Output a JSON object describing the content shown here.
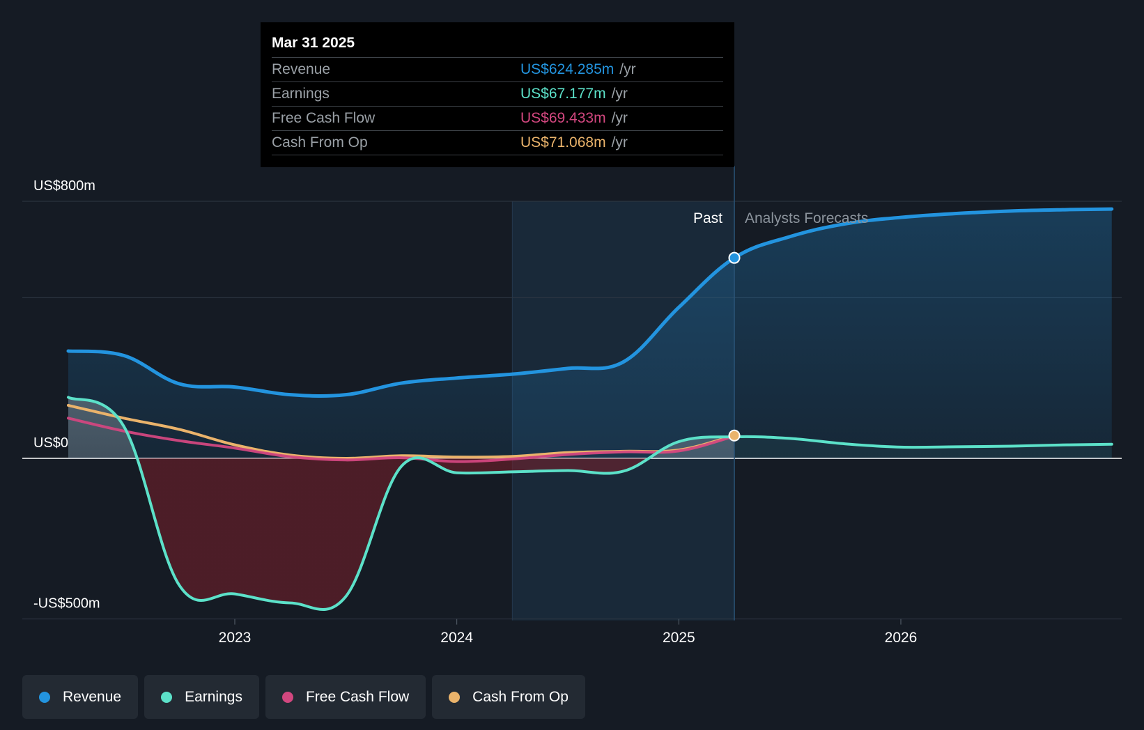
{
  "colors": {
    "revenue": "#2394df",
    "earnings": "#5ce1c9",
    "free_cash_flow": "#d2477f",
    "cash_from_op": "#eab36b",
    "background": "#151b24"
  },
  "tooltip": {
    "date": "Mar 31 2025",
    "rows": [
      {
        "label": "Revenue",
        "value": "US$624.285m",
        "unit": "/yr",
        "color": "#2394df"
      },
      {
        "label": "Earnings",
        "value": "US$67.177m",
        "unit": "/yr",
        "color": "#5ce1c9"
      },
      {
        "label": "Free Cash Flow",
        "value": "US$69.433m",
        "unit": "/yr",
        "color": "#d2477f"
      },
      {
        "label": "Cash From Op",
        "value": "US$71.068m",
        "unit": "/yr",
        "color": "#eab36b"
      }
    ]
  },
  "legend": [
    {
      "label": "Revenue",
      "color": "#2394df"
    },
    {
      "label": "Earnings",
      "color": "#5ce1c9"
    },
    {
      "label": "Free Cash Flow",
      "color": "#d2477f"
    },
    {
      "label": "Cash From Op",
      "color": "#eab36b"
    }
  ],
  "chart_data": {
    "type": "line",
    "y_labels": [
      "US$800m",
      "US$0",
      "-US$500m"
    ],
    "ylim": [
      -500,
      800
    ],
    "y_gridlines": [
      800,
      500,
      0,
      -500
    ],
    "x_ticks": [
      {
        "label": "2023",
        "x": 2023.0
      },
      {
        "label": "2024",
        "x": 2024.0
      },
      {
        "label": "2025",
        "x": 2025.0
      },
      {
        "label": "2026",
        "x": 2026.0
      }
    ],
    "xlim": [
      2022.0,
      2026.95
    ],
    "past_label": "Past",
    "forecast_label": "Analysts Forecasts",
    "past_start": 2024.25,
    "divider_x": 2025.25,
    "series": [
      {
        "name": "Revenue",
        "key": "revenue",
        "fill": true,
        "values": [
          [
            2022.25,
            334
          ],
          [
            2022.5,
            320
          ],
          [
            2022.75,
            232
          ],
          [
            2023.0,
            222
          ],
          [
            2023.25,
            198
          ],
          [
            2023.5,
            198
          ],
          [
            2023.75,
            234
          ],
          [
            2024.0,
            250
          ],
          [
            2024.25,
            262
          ],
          [
            2024.5,
            280
          ],
          [
            2024.75,
            300
          ],
          [
            2025.0,
            470
          ],
          [
            2025.25,
            624
          ]
        ],
        "forecast": [
          [
            2025.25,
            624
          ],
          [
            2025.5,
            690
          ],
          [
            2025.75,
            730
          ],
          [
            2026.0,
            750
          ],
          [
            2026.25,
            762
          ],
          [
            2026.5,
            770
          ],
          [
            2026.75,
            774
          ],
          [
            2026.95,
            776
          ]
        ]
      },
      {
        "name": "Earnings",
        "key": "earnings",
        "fill": true,
        "values": [
          [
            2022.25,
            190
          ],
          [
            2022.5,
            100
          ],
          [
            2022.75,
            -395
          ],
          [
            2023.0,
            -422
          ],
          [
            2023.25,
            -450
          ],
          [
            2023.5,
            -430
          ],
          [
            2023.75,
            -25
          ],
          [
            2024.0,
            -45
          ],
          [
            2024.25,
            -42
          ],
          [
            2024.5,
            -38
          ],
          [
            2024.75,
            -40
          ],
          [
            2025.0,
            52
          ],
          [
            2025.25,
            67
          ]
        ],
        "forecast": [
          [
            2025.25,
            67
          ],
          [
            2025.5,
            62
          ],
          [
            2025.75,
            45
          ],
          [
            2026.0,
            35
          ],
          [
            2026.25,
            36
          ],
          [
            2026.5,
            38
          ],
          [
            2026.75,
            42
          ],
          [
            2026.95,
            44
          ]
        ]
      },
      {
        "name": "Free Cash Flow",
        "key": "free_cash_flow",
        "fill": false,
        "values": [
          [
            2022.25,
            125
          ],
          [
            2022.5,
            85
          ],
          [
            2022.75,
            55
          ],
          [
            2023.0,
            32
          ],
          [
            2023.25,
            5
          ],
          [
            2023.5,
            -5
          ],
          [
            2023.75,
            2
          ],
          [
            2024.0,
            -10
          ],
          [
            2024.25,
            -2
          ],
          [
            2024.5,
            12
          ],
          [
            2024.75,
            20
          ],
          [
            2025.0,
            23
          ],
          [
            2025.25,
            69
          ]
        ]
      },
      {
        "name": "Cash From Op",
        "key": "cash_from_op",
        "fill": false,
        "values": [
          [
            2022.25,
            165
          ],
          [
            2022.5,
            125
          ],
          [
            2022.75,
            90
          ],
          [
            2023.0,
            42
          ],
          [
            2023.25,
            10
          ],
          [
            2023.5,
            0
          ],
          [
            2023.75,
            8
          ],
          [
            2024.0,
            4
          ],
          [
            2024.25,
            6
          ],
          [
            2024.5,
            18
          ],
          [
            2024.75,
            22
          ],
          [
            2025.0,
            26
          ],
          [
            2025.25,
            71
          ]
        ]
      }
    ]
  }
}
